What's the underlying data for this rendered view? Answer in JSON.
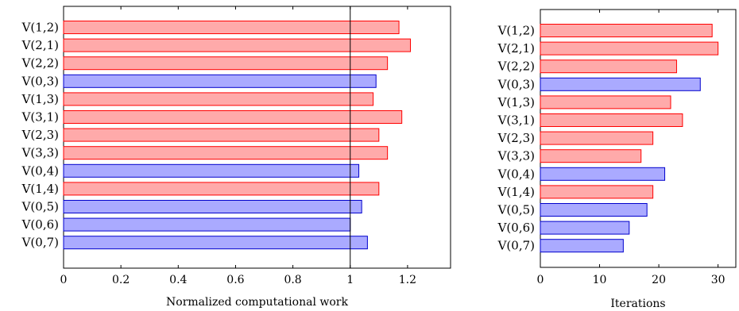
{
  "charts": [
    {
      "type": "bar",
      "orientation": "horizontal",
      "categories": [
        "V(1,2)",
        "V(2,1)",
        "V(2,2)",
        "V(0,3)",
        "V(1,3)",
        "V(3,1)",
        "V(2,3)",
        "V(3,3)",
        "V(0,4)",
        "V(1,4)",
        "V(0,5)",
        "V(0,6)",
        "V(0,7)"
      ],
      "values": [
        1.17,
        1.21,
        1.13,
        1.09,
        1.08,
        1.18,
        1.1,
        1.13,
        1.03,
        1.1,
        1.04,
        1.0,
        1.06
      ],
      "bar_colors": [
        "red",
        "red",
        "red",
        "blue",
        "red",
        "red",
        "red",
        "red",
        "blue",
        "red",
        "blue",
        "blue",
        "blue"
      ],
      "xlabel": "Normalized computational work",
      "xlim": [
        0,
        1.35
      ],
      "xticks": [
        0,
        0.2,
        0.4,
        0.6,
        0.8,
        1,
        1.2
      ],
      "xtick_labels": [
        "0",
        "0.2",
        "0.4",
        "0.6",
        "0.8",
        "1",
        "1.2"
      ],
      "reference_line": 1
    },
    {
      "type": "bar",
      "orientation": "horizontal",
      "categories": [
        "V(1,2)",
        "V(2,1)",
        "V(2,2)",
        "V(0,3)",
        "V(1,3)",
        "V(3,1)",
        "V(2,3)",
        "V(3,3)",
        "V(0,4)",
        "V(1,4)",
        "V(0,5)",
        "V(0,6)",
        "V(0,7)"
      ],
      "values": [
        29,
        30,
        23,
        27,
        22,
        24,
        19,
        17,
        21,
        19,
        18,
        15,
        14
      ],
      "bar_colors": [
        "red",
        "red",
        "red",
        "blue",
        "red",
        "red",
        "red",
        "red",
        "blue",
        "red",
        "blue",
        "blue",
        "blue"
      ],
      "xlabel": "Iterations",
      "xlim": [
        0,
        33
      ],
      "xticks": [
        0,
        10,
        20,
        30
      ],
      "xtick_labels": [
        "0",
        "10",
        "20",
        "30"
      ]
    }
  ],
  "colors": {
    "red_fill": "#ffaaaa",
    "red_stroke": "#ff0000",
    "blue_fill": "#aaaaff",
    "blue_stroke": "#0000cc",
    "axis": "#000000"
  }
}
